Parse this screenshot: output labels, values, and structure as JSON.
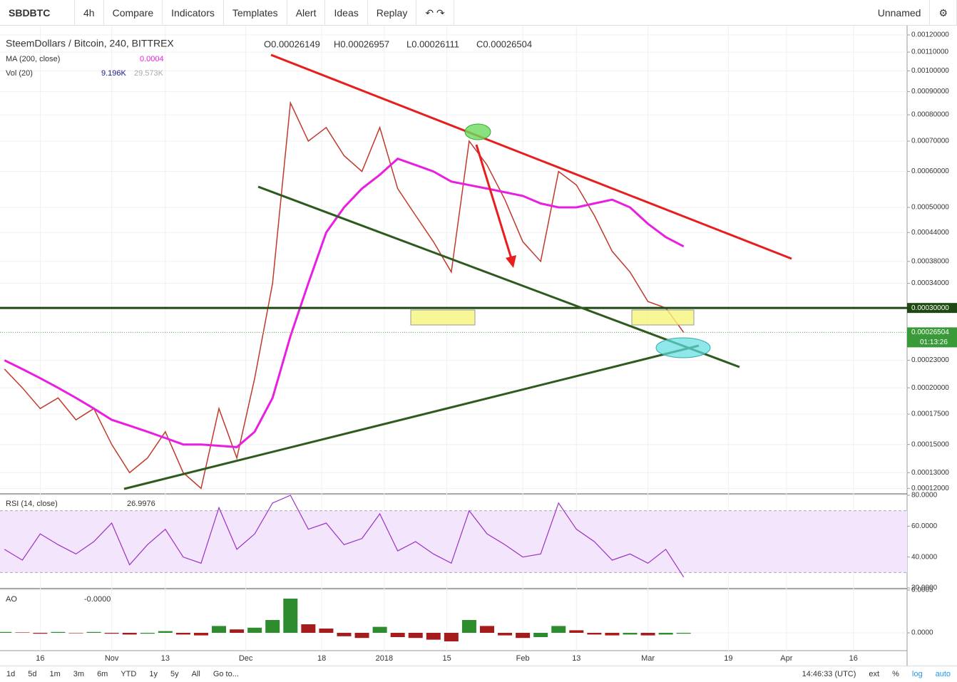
{
  "toolbar": {
    "symbol": "SBDBTC",
    "interval": "4h",
    "buttons": [
      "Compare",
      "Indicators",
      "Templates",
      "Alert",
      "Ideas",
      "Replay"
    ],
    "layout": "Unnamed"
  },
  "bottom_bar": {
    "ranges": [
      "1d",
      "5d",
      "1m",
      "3m",
      "6m",
      "YTD",
      "1y",
      "5y",
      "All",
      "Go to..."
    ],
    "clock": "14:46:33 (UTC)",
    "options": [
      "ext",
      "%",
      "log",
      "auto"
    ]
  },
  "chart_data": [
    {
      "type": "line",
      "title": "SteemDollars / Bitcoin, 240, BITTREX",
      "ohlc": [
        "O0.00026149",
        "H0.00026957",
        "L0.00026111",
        "C0.00026504"
      ],
      "log_scale": true,
      "xlim": [
        -9,
        194
      ],
      "xticks": [
        {
          "value": 0,
          "label": "16"
        },
        {
          "value": 16,
          "label": "Nov"
        },
        {
          "value": 28,
          "label": "13"
        },
        {
          "value": 46,
          "label": "Dec"
        },
        {
          "value": 63,
          "label": "18"
        },
        {
          "value": 77,
          "label": "2018"
        },
        {
          "value": 91,
          "label": "15"
        },
        {
          "value": 108,
          "label": "Feb"
        },
        {
          "value": 120,
          "label": "13"
        },
        {
          "value": 136,
          "label": "Mar"
        },
        {
          "value": 154,
          "label": "19"
        },
        {
          "value": 167,
          "label": "Apr"
        },
        {
          "value": 182,
          "label": "16"
        }
      ],
      "ylim": [
        0.000118,
        0.00124
      ],
      "yticks": [
        {
          "value": 0.0012,
          "label": "0.00120000"
        },
        {
          "value": 0.0011,
          "label": "0.00110000"
        },
        {
          "value": 0.001,
          "label": "0.00100000"
        },
        {
          "value": 0.0009,
          "label": "0.00090000"
        },
        {
          "value": 0.0008,
          "label": "0.00080000"
        },
        {
          "value": 0.0007,
          "label": "0.00070000"
        },
        {
          "value": 0.0006,
          "label": "0.00060000"
        },
        {
          "value": 0.0005,
          "label": "0.00050000"
        },
        {
          "value": 0.00044,
          "label": "0.00044000"
        },
        {
          "value": 0.00038,
          "label": "0.00038000"
        },
        {
          "value": 0.00034,
          "label": "0.00034000"
        },
        {
          "value": 0.00023,
          "label": "0.00023000"
        },
        {
          "value": 0.0002,
          "label": "0.00020000"
        },
        {
          "value": 0.000175,
          "label": "0.00017500"
        },
        {
          "value": 0.00015,
          "label": "0.00015000"
        },
        {
          "value": 0.00013,
          "label": "0.00013000"
        },
        {
          "value": 0.00012,
          "label": "0.00012000"
        }
      ],
      "hline": {
        "value": 0.0003,
        "label": "0.00030000"
      },
      "last_price": {
        "value": 0.00026504,
        "label": "0.00026504",
        "countdown": "01:13:26"
      },
      "x": [
        -8,
        -4,
        0,
        4,
        8,
        12,
        16,
        20,
        24,
        28,
        32,
        36,
        40,
        44,
        48,
        52,
        56,
        60,
        64,
        68,
        72,
        76,
        80,
        84,
        88,
        92,
        96,
        100,
        104,
        108,
        112,
        116,
        120,
        124,
        128,
        132,
        136,
        140,
        144
      ],
      "series": [
        {
          "color": "#c0392b",
          "values": [
            0.00022,
            0.0002,
            0.00018,
            0.00019,
            0.00017,
            0.00018,
            0.00015,
            0.00013,
            0.00014,
            0.00016,
            0.00013,
            0.00012,
            0.00018,
            0.00014,
            0.00021,
            0.00034,
            0.00085,
            0.0007,
            0.00075,
            0.00065,
            0.0006,
            0.00075,
            0.00055,
            0.00048,
            0.00042,
            0.00036,
            0.0007,
            0.00062,
            0.00052,
            0.00042,
            0.00038,
            0.0006,
            0.00056,
            0.00048,
            0.0004,
            0.00036,
            0.00031,
            0.0003,
            0.00026504
          ]
        },
        {
          "name": "MA (200, close)",
          "legend_value": "0.0004",
          "color": "#e91ee0",
          "values": [
            0.00023,
            0.00022,
            0.00021,
            0.0002,
            0.00019,
            0.00018,
            0.00017,
            0.000165,
            0.00016,
            0.000155,
            0.00015,
            0.00015,
            0.000149,
            0.000148,
            0.00016,
            0.00019,
            0.00026,
            0.00034,
            0.00044,
            0.0005,
            0.00055,
            0.00059,
            0.00064,
            0.00062,
            0.0006,
            0.00057,
            0.00056,
            0.00055,
            0.00054,
            0.00053,
            0.00051,
            0.0005,
            0.0005,
            0.00051,
            0.00052,
            0.0005,
            0.00046,
            0.00043,
            0.00041
          ]
        }
      ],
      "indicator": {
        "name": "Vol (20)",
        "values_text": [
          "9.196K",
          "29.573K"
        ]
      }
    },
    {
      "type": "line",
      "name": "RSI (14, close)",
      "legend_value": "26.9976",
      "color": "#9b30c8",
      "ylim": [
        20,
        80
      ],
      "band": [
        30,
        70
      ],
      "yticks": [
        {
          "value": 80,
          "label": "80.0000"
        },
        {
          "value": 60,
          "label": "60.0000"
        },
        {
          "value": 40,
          "label": "40.0000"
        },
        {
          "value": 20,
          "label": "20.0000"
        }
      ],
      "x": [
        -8,
        -4,
        0,
        4,
        8,
        12,
        16,
        20,
        24,
        28,
        32,
        36,
        40,
        44,
        48,
        52,
        56,
        60,
        64,
        68,
        72,
        76,
        80,
        84,
        88,
        92,
        96,
        100,
        104,
        108,
        112,
        116,
        120,
        124,
        128,
        132,
        136,
        140,
        144
      ],
      "values": [
        45,
        38,
        55,
        48,
        42,
        50,
        62,
        35,
        48,
        58,
        40,
        36,
        72,
        45,
        55,
        75,
        80,
        58,
        62,
        48,
        52,
        68,
        44,
        50,
        42,
        36,
        70,
        55,
        48,
        40,
        42,
        75,
        58,
        50,
        38,
        42,
        36,
        45,
        27
      ]
    },
    {
      "type": "bar",
      "name": "AO",
      "legend_value": "-0.0000",
      "up_color": "#2e8b2e",
      "down_color": "#a61c1c",
      "ylim": [
        -0.0002,
        0.0005
      ],
      "yticks": [
        {
          "value": 0.0005,
          "label": "0.0005"
        },
        {
          "value": 0,
          "label": "0.0000"
        }
      ],
      "x": [
        -8,
        -4,
        0,
        4,
        8,
        12,
        16,
        20,
        24,
        28,
        32,
        36,
        40,
        44,
        48,
        52,
        56,
        60,
        64,
        68,
        72,
        76,
        80,
        84,
        88,
        92,
        96,
        100,
        104,
        108,
        112,
        116,
        120,
        124,
        128,
        132,
        136,
        140,
        144
      ],
      "values": [
        1e-05,
        5e-06,
        -1e-05,
        1e-05,
        -5e-06,
        1e-05,
        -1e-05,
        -2e-05,
        -1e-05,
        2e-05,
        -2e-05,
        -3e-05,
        8e-05,
        4e-05,
        6e-05,
        0.00015,
        0.0004,
        0.0001,
        5e-05,
        -4e-05,
        -6e-05,
        7e-05,
        -5e-05,
        -6e-05,
        -8e-05,
        -0.0001,
        0.00015,
        8e-05,
        -3e-05,
        -6e-05,
        -5e-05,
        8e-05,
        3e-05,
        -2e-05,
        -3e-05,
        -2e-05,
        -3e-05,
        -2e-05,
        -1e-05
      ]
    }
  ]
}
